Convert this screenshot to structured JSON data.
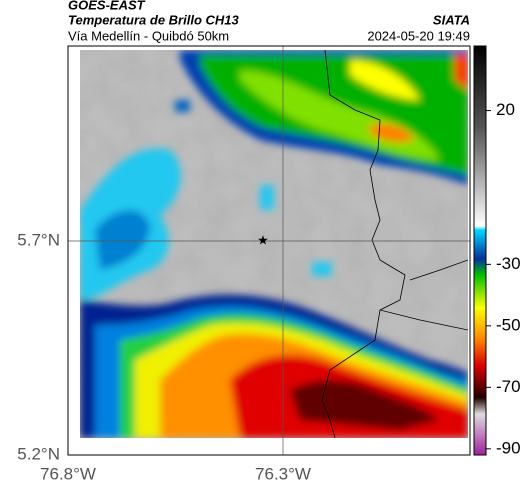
{
  "header": {
    "source": "GOES-EAST",
    "title": "Temperatura de Brillo CH13",
    "subtitle": "Vía Medellín - Quibdó 50km",
    "agency": "SIATA",
    "timestamp": "2024-05-20 19:49"
  },
  "axes": {
    "lat_labels": [
      "5.7°N",
      "5.2°N"
    ],
    "lon_labels": [
      "76.8°W",
      "76.3°W"
    ]
  },
  "colorbar": {
    "lim": [
      -92,
      41
    ],
    "ticks": [
      20,
      -30,
      -50,
      -70,
      -90
    ]
  }
}
